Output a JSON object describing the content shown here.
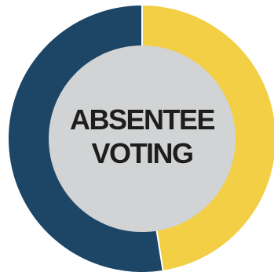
{
  "chart_data": {
    "type": "pie",
    "style": "donut",
    "slices": [
      {
        "name": "",
        "value": 47.5,
        "color": "#f2cf44"
      },
      {
        "name": "",
        "value": 52.5,
        "color": "#1c4566"
      }
    ],
    "start_angle_deg": 0,
    "center_color": "#d1d3d4",
    "separator_color": "#ffffff",
    "center_label": {
      "line1": "ABSENTEE",
      "line2": "VOTING"
    }
  }
}
